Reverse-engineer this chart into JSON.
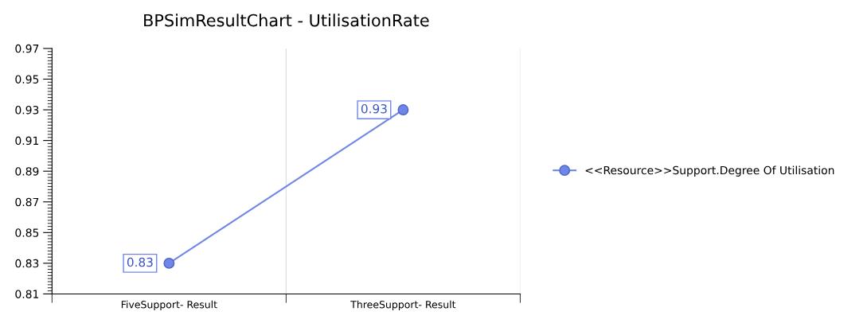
{
  "chart_data": {
    "type": "line",
    "title": "BPSimResultChart - UtilisationRate",
    "categories": [
      "FiveSupport- Result",
      "ThreeSupport- Result"
    ],
    "series": [
      {
        "name": "<<Resource>>Support.Degree Of Utilisation",
        "color": "#6f86e8",
        "values": [
          0.83,
          0.93
        ]
      }
    ],
    "ylim": [
      0.81,
      0.97
    ],
    "yticks": [
      0.81,
      0.83,
      0.85,
      0.87,
      0.89,
      0.91,
      0.93,
      0.95,
      0.97
    ],
    "data_labels": true,
    "marker": "circle",
    "line_style": "solid",
    "grid": "x",
    "legend": "right"
  }
}
